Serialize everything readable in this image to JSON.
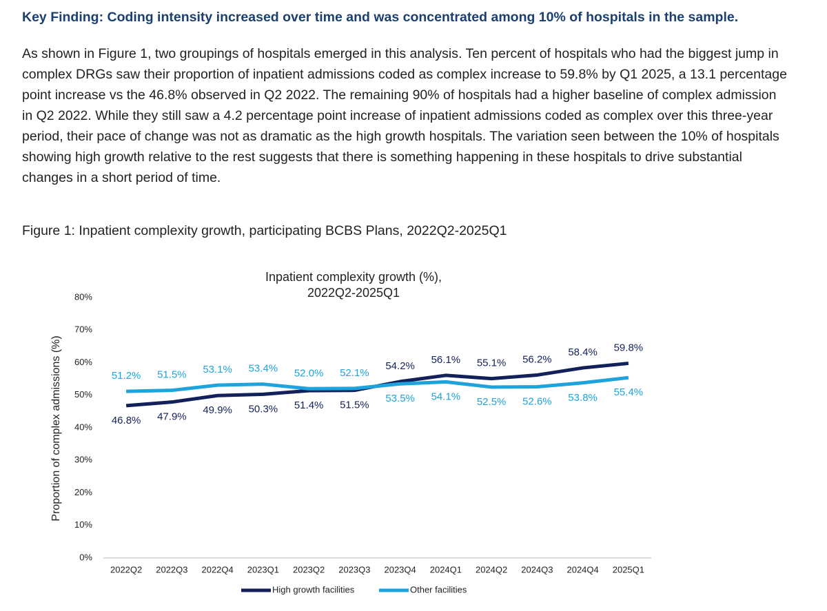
{
  "heading": "Key Finding: Coding intensity increased over time and was concentrated among 10% of hospitals in the sample.",
  "paragraph": "As shown in Figure 1, two groupings of hospitals emerged in this analysis. Ten percent of hospitals who had the biggest jump in complex DRGs saw their proportion of inpatient admissions coded as complex increase to 59.8% by Q1 2025, a 13.1 percentage point increase vs the 46.8% observed in Q2 2022. The remaining 90% of hospitals had a higher baseline of complex admission in Q2 2022.  While they still saw a 4.2 percentage point increase of inpatient admissions coded as complex over this three-year period, their pace of change was not as dramatic as the high growth hospitals. The variation seen between the 10% of hospitals showing high growth relative to the rest suggests that there is something happening in these hospitals to drive substantial changes in a short period of time.",
  "figure_caption": "Figure 1: Inpatient complexity growth, participating BCBS Plans, 2022Q2-2025Q1",
  "chart_data": {
    "type": "line",
    "title": [
      "Inpatient complexity growth (%),",
      "2022Q2-2025Q1"
    ],
    "y_label": "Proportion of complex admissions (%)",
    "categories": [
      "2022Q2",
      "2022Q3",
      "2022Q4",
      "2023Q1",
      "2023Q2",
      "2023Q3",
      "2023Q4",
      "2024Q1",
      "2024Q2",
      "2024Q3",
      "2024Q4",
      "2025Q1"
    ],
    "series": [
      {
        "name": "High growth facilities",
        "color": "#13215a",
        "values": [
          46.8,
          47.9,
          49.9,
          50.3,
          51.4,
          51.5,
          54.2,
          56.1,
          55.1,
          56.2,
          58.4,
          59.8
        ],
        "value_labels": [
          "46.8%",
          "47.9%",
          "49.9%",
          "50.3%",
          "51.4%",
          "51.5%",
          "54.2%",
          "56.1%",
          "55.1%",
          "56.2%",
          "58.4%",
          "59.8%"
        ]
      },
      {
        "name": "Other facilities",
        "color": "#1fa3dc",
        "values": [
          51.2,
          51.5,
          53.1,
          53.4,
          52.0,
          52.1,
          53.5,
          54.1,
          52.5,
          52.6,
          53.8,
          55.4
        ],
        "value_labels": [
          "51.2%",
          "51.5%",
          "53.1%",
          "53.4%",
          "52.0%",
          "52.1%",
          "53.5%",
          "54.1%",
          "52.5%",
          "52.6%",
          "53.8%",
          "55.4%"
        ]
      }
    ],
    "ylim": [
      0,
      80
    ],
    "yticks": [
      {
        "value": 0,
        "label": "0%"
      },
      {
        "value": 10,
        "label": "10%"
      },
      {
        "value": 20,
        "label": "20%"
      },
      {
        "value": 30,
        "label": "30%"
      },
      {
        "value": 40,
        "label": "40%"
      },
      {
        "value": 50,
        "label": "50%"
      },
      {
        "value": 60,
        "label": "60%"
      },
      {
        "value": 70,
        "label": "70%"
      },
      {
        "value": 80,
        "label": "80%"
      }
    ],
    "grid": false,
    "legend": "bottom"
  }
}
